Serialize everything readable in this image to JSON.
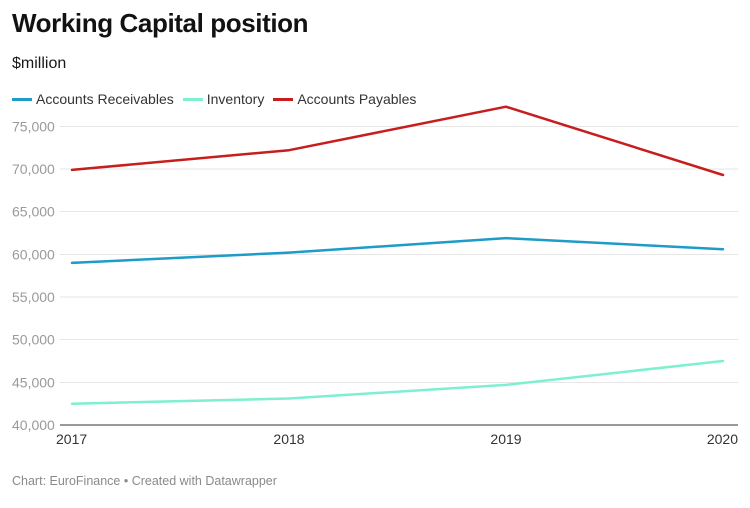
{
  "header": {
    "title": "Working Capital position",
    "subtitle": "$million"
  },
  "footer": {
    "source": "Chart: EuroFinance • Created with Datawrapper"
  },
  "chart_data": {
    "type": "line",
    "title": "Working Capital position",
    "subtitle": "$million",
    "xlabel": "",
    "ylabel": "",
    "x": [
      2017,
      2018,
      2019,
      2020
    ],
    "x_tick_labels": [
      "2017",
      "2018",
      "2019",
      "2020"
    ],
    "ylim": [
      40000,
      77500
    ],
    "y_ticks": [
      40000,
      45000,
      50000,
      55000,
      60000,
      65000,
      70000,
      75000
    ],
    "y_tick_labels": [
      "40,000",
      "45,000",
      "50,000",
      "55,000",
      "60,000",
      "65,000",
      "70,000",
      "75,000"
    ],
    "grid": true,
    "legend_position": "top-left",
    "series": [
      {
        "name": "Accounts Receivables",
        "color": "#1d9bc9",
        "values": [
          59000,
          60200,
          61900,
          60600
        ]
      },
      {
        "name": "Inventory",
        "color": "#7eefd0",
        "values": [
          42500,
          43100,
          44700,
          47500
        ]
      },
      {
        "name": "Accounts Payables",
        "color": "#c71e1d",
        "values": [
          69900,
          72200,
          77300,
          69300
        ]
      }
    ]
  }
}
